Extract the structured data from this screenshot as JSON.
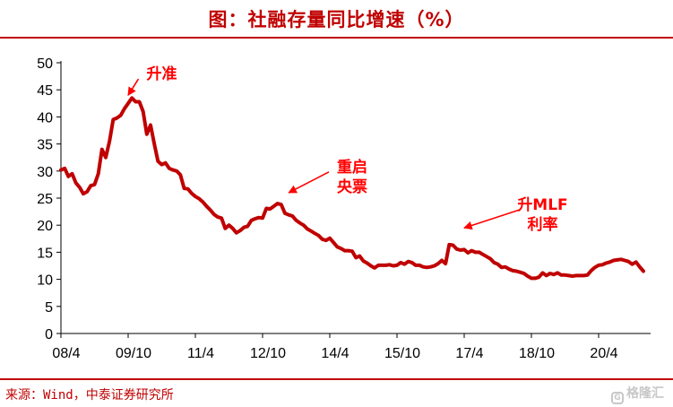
{
  "title": "图：社融存量同比增速（%）",
  "source": "来源：Wind，中泰证券研究所",
  "watermark": "格隆汇",
  "colors": {
    "accent": "#c00000",
    "line": "#c00000",
    "annotation": "#ff0000"
  },
  "chart_data": {
    "type": "line",
    "title": "图：社融存量同比增速（%）",
    "xlabel": "",
    "ylabel": "",
    "ylim": [
      0,
      50
    ],
    "yticks": [
      0,
      5,
      10,
      15,
      20,
      25,
      30,
      35,
      40,
      45,
      50
    ],
    "xticks": [
      "08/4",
      "09/10",
      "11/4",
      "12/10",
      "14/4",
      "15/10",
      "17/4",
      "18/10",
      "20/4"
    ],
    "grid": false,
    "legend": "none",
    "x_start": "2008-04",
    "x_end": "2021-04",
    "series": [
      {
        "x": [
          "2008-04",
          "2008-05",
          "2008-06",
          "2008-07",
          "2008-08",
          "2008-09",
          "2008-10",
          "2008-11",
          "2008-12",
          "2009-01",
          "2009-02",
          "2009-03",
          "2009-04",
          "2009-05",
          "2009-06",
          "2009-07",
          "2009-08",
          "2009-09",
          "2009-10",
          "2009-11",
          "2009-12",
          "2010-01",
          "2010-02",
          "2010-03",
          "2010-04",
          "2010-05",
          "2010-06",
          "2010-07",
          "2010-08",
          "2010-09",
          "2010-10",
          "2010-11",
          "2010-12",
          "2011-01",
          "2011-02",
          "2011-03",
          "2011-04",
          "2011-05",
          "2011-06",
          "2011-07",
          "2011-08",
          "2011-09",
          "2011-10",
          "2011-11",
          "2011-12",
          "2012-01",
          "2012-02",
          "2012-03",
          "2012-04",
          "2012-05",
          "2012-06",
          "2012-07",
          "2012-08",
          "2012-09",
          "2012-10",
          "2012-11",
          "2012-12",
          "2013-01",
          "2013-02",
          "2013-03",
          "2013-04",
          "2013-05",
          "2013-06",
          "2013-07",
          "2013-08",
          "2013-09",
          "2013-10",
          "2013-11",
          "2013-12",
          "2014-01",
          "2014-02",
          "2014-03",
          "2014-04",
          "2014-05",
          "2014-06",
          "2014-07",
          "2014-08",
          "2014-09",
          "2014-10",
          "2014-11",
          "2014-12",
          "2015-01",
          "2015-02",
          "2015-03",
          "2015-04",
          "2015-05",
          "2015-06",
          "2015-07",
          "2015-08",
          "2015-09",
          "2015-10",
          "2015-11",
          "2015-12",
          "2016-01",
          "2016-02",
          "2016-03",
          "2016-04",
          "2016-05",
          "2016-06",
          "2016-07",
          "2016-08",
          "2016-09",
          "2016-10",
          "2016-11",
          "2016-12",
          "2017-01",
          "2017-02",
          "2017-03",
          "2017-04",
          "2017-05",
          "2017-06",
          "2017-07",
          "2017-08",
          "2017-09",
          "2017-10",
          "2017-11",
          "2017-12",
          "2018-01",
          "2018-02",
          "2018-03",
          "2018-04",
          "2018-05",
          "2018-06",
          "2018-07",
          "2018-08",
          "2018-09",
          "2018-10",
          "2018-11",
          "2018-12",
          "2019-01",
          "2019-02",
          "2019-03",
          "2019-04",
          "2019-05",
          "2019-06",
          "2019-07",
          "2019-08",
          "2019-09",
          "2019-10",
          "2019-11",
          "2019-12",
          "2020-01",
          "2020-02",
          "2020-03",
          "2020-04",
          "2020-05",
          "2020-06",
          "2020-07",
          "2020-08",
          "2020-09",
          "2020-10",
          "2020-11",
          "2020-12",
          "2021-01",
          "2021-02",
          "2021-03",
          "2021-04"
        ],
        "y": [
          30.2,
          30.5,
          29.0,
          29.5,
          27.8,
          27.0,
          25.8,
          26.2,
          27.3,
          27.5,
          29.5,
          34.0,
          32.5,
          35.5,
          39.5,
          39.8,
          40.3,
          41.5,
          42.5,
          43.5,
          42.8,
          42.8,
          41.0,
          36.8,
          38.5,
          35.0,
          31.8,
          31.2,
          31.5,
          30.5,
          30.2,
          30.0,
          29.3,
          26.8,
          26.7,
          25.9,
          25.3,
          24.9,
          24.3,
          23.5,
          22.8,
          22.0,
          21.5,
          21.3,
          19.4,
          20.0,
          19.4,
          18.6,
          19.0,
          19.6,
          19.8,
          20.9,
          21.2,
          21.4,
          21.3,
          23.1,
          23.0,
          23.5,
          24.0,
          23.8,
          22.2,
          21.9,
          21.7,
          20.9,
          20.4,
          20.0,
          19.3,
          18.9,
          18.5,
          18.1,
          17.4,
          17.2,
          17.6,
          16.8,
          16.0,
          15.7,
          15.3,
          15.3,
          15.2,
          14.0,
          14.3,
          13.4,
          13.0,
          12.5,
          12.1,
          12.6,
          12.6,
          12.6,
          12.7,
          12.5,
          12.6,
          13.1,
          12.8,
          13.3,
          13.1,
          12.6,
          12.6,
          12.3,
          12.2,
          12.3,
          12.5,
          12.9,
          13.5,
          12.9,
          16.4,
          16.3,
          15.6,
          15.4,
          15.5,
          14.9,
          15.3,
          15.0,
          15.0,
          14.6,
          14.2,
          13.8,
          13.1,
          12.8,
          12.2,
          12.3,
          11.9,
          11.6,
          11.5,
          11.3,
          11.1,
          10.6,
          10.2,
          10.2,
          10.4,
          11.2,
          10.7,
          11.1,
          10.9,
          11.2,
          10.8,
          10.8,
          10.7,
          10.6,
          10.7,
          10.7,
          10.7,
          10.8,
          11.6,
          12.2,
          12.6,
          12.7,
          13.0,
          13.2,
          13.5,
          13.6,
          13.7,
          13.5,
          13.3,
          12.8,
          13.2,
          12.3,
          11.5
        ]
      }
    ],
    "annotations": [
      {
        "lines": [
          "升准"
        ],
        "x": "2010-07",
        "y": 48.0,
        "arrow_to": {
          "x": "2009-10",
          "y": 44.0
        }
      },
      {
        "lines": [
          "重启",
          "央票"
        ],
        "x": "2014-10",
        "y": 29.0,
        "arrow_to": {
          "x": "2013-05",
          "y": 26.0
        }
      },
      {
        "lines": [
          "升MLF",
          "利率"
        ],
        "x": "2019-01",
        "y": 22.0,
        "arrow_to": {
          "x": "2017-04",
          "y": 19.5
        }
      }
    ]
  }
}
